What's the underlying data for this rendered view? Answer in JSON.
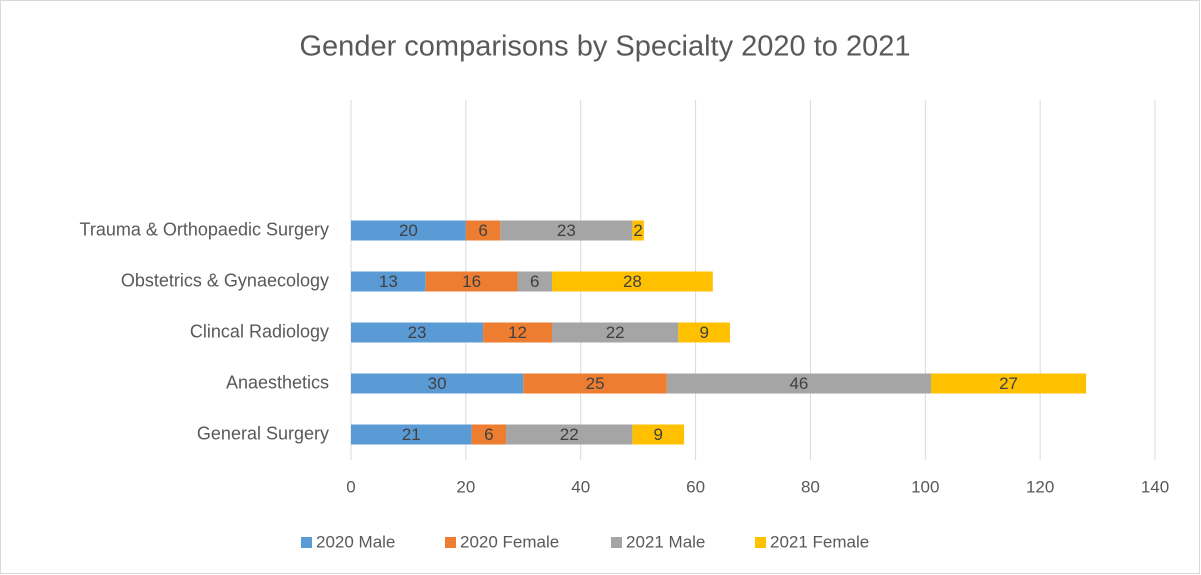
{
  "chart_data": {
    "type": "stacked-bar-horizontal",
    "title": "Gender comparisons by Specialty 2020 to 2021",
    "categories": [
      "General Surgery",
      "Anaesthetics",
      "Clincal Radiology",
      "Obstetrics & Gynaecology",
      "Trauma & Orthopaedic Surgery"
    ],
    "series": [
      {
        "name": "2020 Male",
        "color": "#5b9bd5",
        "values": [
          21,
          30,
          23,
          13,
          20
        ]
      },
      {
        "name": "2020 Female",
        "color": "#ed7d31",
        "values": [
          6,
          25,
          12,
          16,
          6
        ]
      },
      {
        "name": "2021 Male",
        "color": "#a5a5a5",
        "values": [
          22,
          46,
          22,
          6,
          23
        ]
      },
      {
        "name": "2021 Female",
        "color": "#ffc000",
        "values": [
          9,
          27,
          9,
          28,
          2
        ]
      }
    ],
    "xlim": [
      0,
      140
    ],
    "xticks": [
      0,
      20,
      40,
      60,
      80,
      100,
      120,
      140
    ],
    "grid": true,
    "legend": "bottom"
  }
}
